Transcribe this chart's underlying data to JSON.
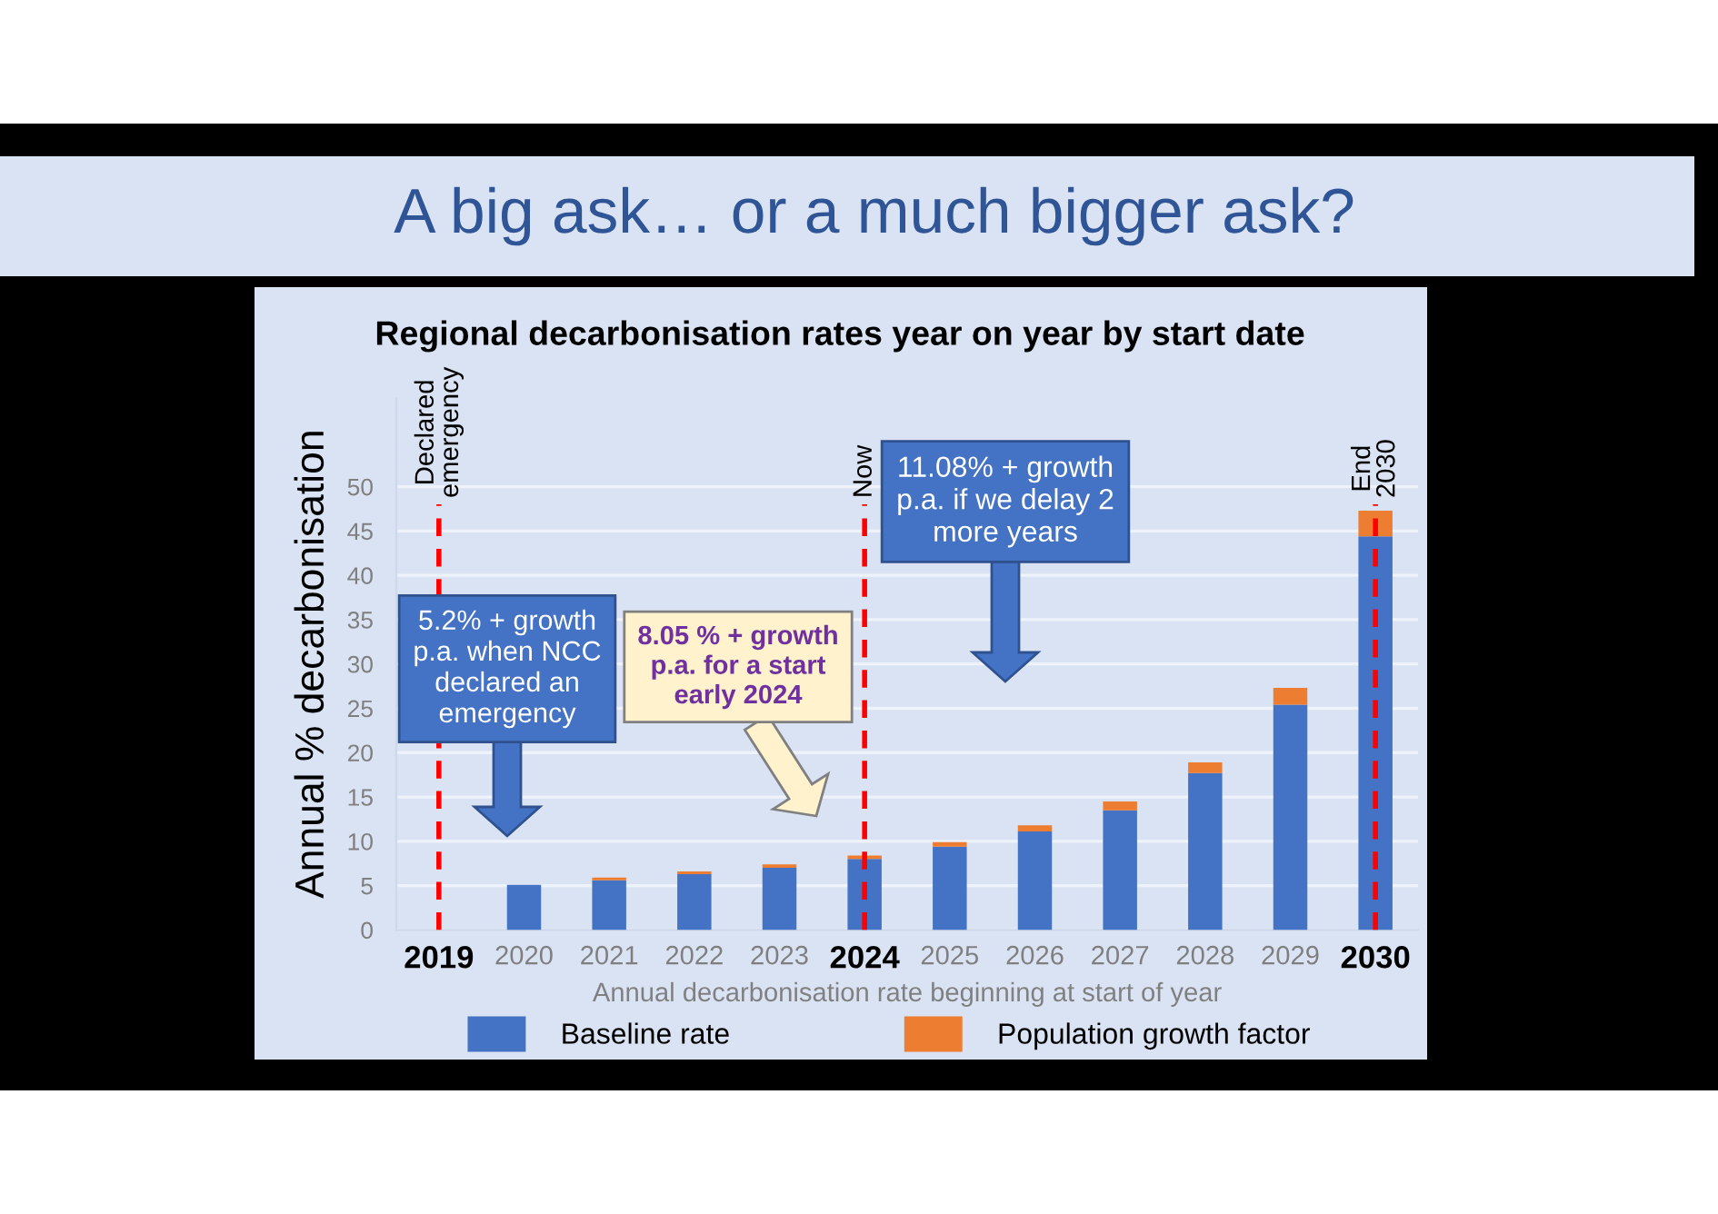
{
  "chart_data": {
    "type": "bar",
    "title": "A big ask… or a much bigger ask?",
    "subtitle": "Regional decarbonisation rates year on year by start date",
    "xlabel": "Annual decarbonisation rate beginning at start of year",
    "ylabel": "Annual % decarbonisation",
    "categories": [
      "2019",
      "2020",
      "2021",
      "2022",
      "2023",
      "2024",
      "2025",
      "2026",
      "2027",
      "2028",
      "2029",
      "2030"
    ],
    "stacked": true,
    "series": [
      {
        "name": "Baseline rate",
        "color": "#4472c4",
        "values": [
          null,
          5.1,
          5.6,
          6.3,
          7.0,
          8.0,
          9.4,
          11.1,
          13.5,
          17.7,
          25.4,
          44.4
        ]
      },
      {
        "name": "Population growth factor",
        "color": "#ed7d31",
        "values": [
          null,
          null,
          0.3,
          0.3,
          0.4,
          0.4,
          0.5,
          0.7,
          1.0,
          1.2,
          1.9,
          2.9
        ]
      }
    ],
    "ylim": [
      0,
      60
    ],
    "yticks": [
      0,
      5,
      10,
      15,
      20,
      25,
      30,
      35,
      40,
      45,
      50
    ],
    "grid": "y",
    "legend": "bottom",
    "ref_lines": [
      {
        "axis": "x",
        "value": "2019",
        "label": "Declared\nemergency",
        "color": "#ff0000",
        "line_style": "dashed"
      },
      {
        "axis": "x",
        "value": "2024",
        "label": "Now",
        "color": "#ff0000",
        "line_style": "dashed"
      },
      {
        "axis": "x",
        "value": "2030",
        "label": "End\n2030",
        "color": "#ff0000",
        "line_style": "dashed"
      }
    ],
    "annotations": [
      "5.2% + growth\np.a. when NCC\ndeclared an\nemergency",
      "8.05 % + growth\np.a. for a start\nearly 2024",
      "11.08% + growth\np.a. if we delay 2\nmore years"
    ]
  }
}
